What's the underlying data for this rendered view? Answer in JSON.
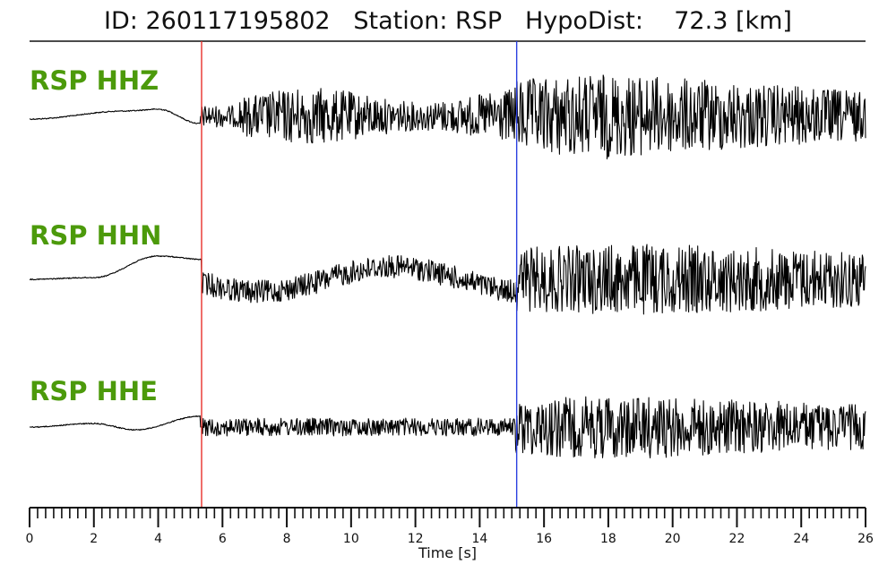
{
  "chart_data": {
    "type": "line",
    "title": "ID: 260117195802   Station: RSP   HypoDist:    72.3 [km]",
    "xlabel": "Time [s]",
    "xlim": [
      0,
      26
    ],
    "xticks": [
      0,
      2,
      4,
      6,
      8,
      10,
      12,
      14,
      16,
      18,
      20,
      22,
      24,
      26
    ],
    "minor_tick_step": 0.25,
    "picks": [
      {
        "phase": "P",
        "time": 5.35,
        "color": "#e8302a"
      },
      {
        "phase": "S",
        "time": 15.15,
        "color": "#2b3fe0"
      }
    ],
    "series": [
      {
        "name": "RSP HHZ",
        "label_color": "#4c9a0b",
        "color": "#000000"
      },
      {
        "name": "RSP HHN",
        "label_color": "#4c9a0b",
        "color": "#000000"
      },
      {
        "name": "RSP HHE",
        "label_color": "#4c9a0b",
        "color": "#000000"
      }
    ]
  }
}
